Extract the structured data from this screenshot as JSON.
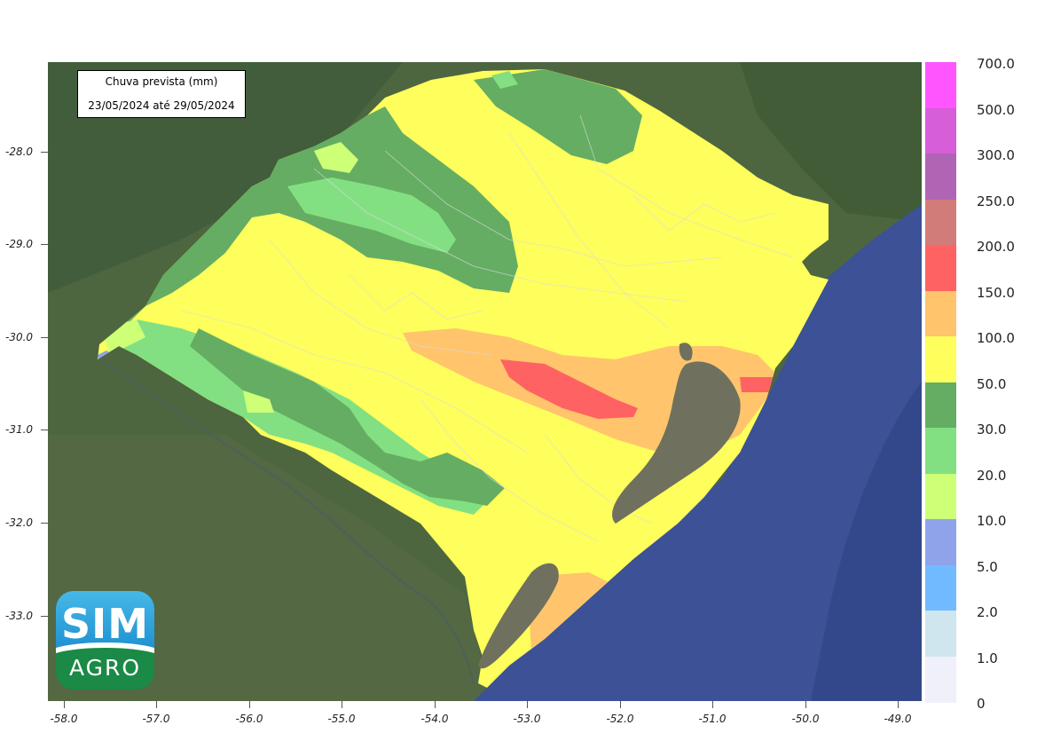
{
  "title": {
    "line1": "Chuva prevista (mm)",
    "line2": "23/05/2024 até 29/05/2024"
  },
  "map": {
    "lat_ticks": [
      "-28.0",
      "-29.0",
      "-30.0",
      "-31.0",
      "-32.0",
      "-33.0"
    ],
    "lon_ticks": [
      "-58.0",
      "-57.0",
      "-56.0",
      "-55.0",
      "-54.0",
      "-53.0",
      "-52.0",
      "-51.0",
      "-50.0",
      "-49.0"
    ],
    "lat_values": [
      -28.0,
      -29.0,
      -30.0,
      -31.0,
      -32.0,
      -33.0
    ],
    "lon_values": [
      -58.0,
      -57.0,
      -56.0,
      -55.0,
      -54.0,
      -53.0,
      -52.0,
      -51.0,
      -50.0,
      -49.0
    ]
  },
  "legend": {
    "labels": [
      "700.0",
      "500.0",
      "300.0",
      "250.0",
      "200.0",
      "150.0",
      "100.0",
      "50.0",
      "30.0",
      "20.0",
      "10.0",
      "5.0",
      "2.0",
      "1.0",
      "0"
    ],
    "colors": [
      "#ff55ff",
      "#d65ed8",
      "#b065b4",
      "#d27c7a",
      "#ff6262",
      "#ffc46c",
      "#fefe5c",
      "#65ad63",
      "#82e082",
      "#cdff77",
      "#8fa3ea",
      "#72baff",
      "#cfe6ee",
      "#f0f0fa"
    ]
  },
  "logo": {
    "line1": "SIM",
    "line2": "AGRO"
  },
  "colors": {
    "ocean": "#3c5196",
    "land_bg": "#4d6640",
    "lagoon": "#6f705e"
  }
}
